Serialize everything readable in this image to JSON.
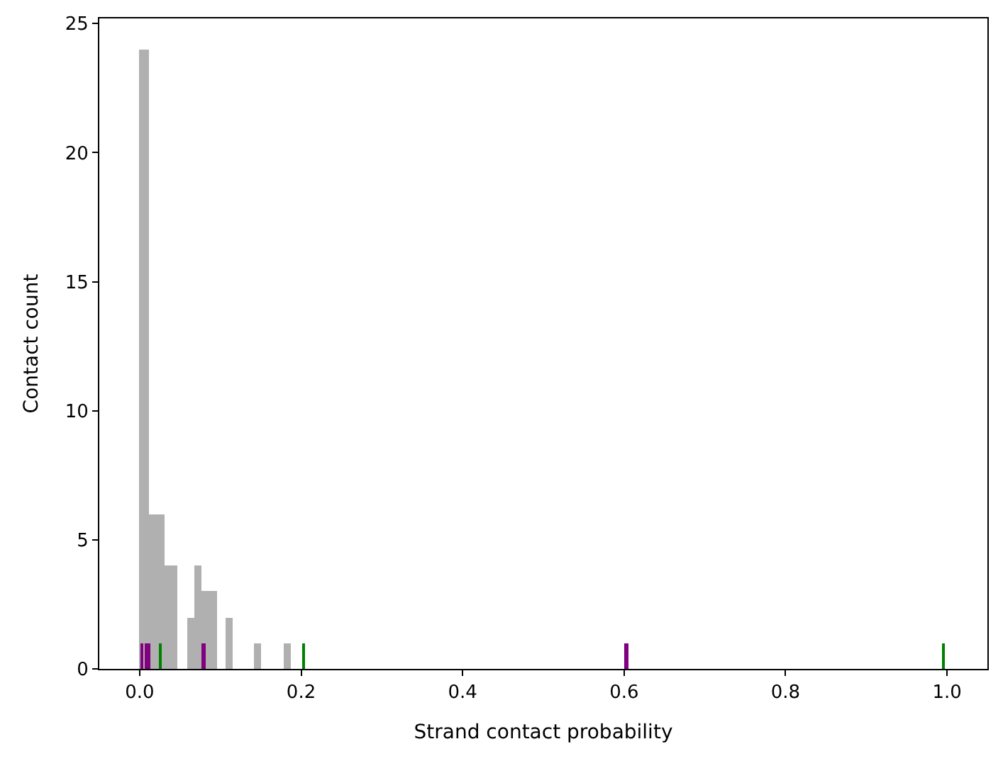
{
  "chart_data": {
    "type": "histogram",
    "xlabel": "Strand contact probability",
    "ylabel": "Contact count",
    "bins": [
      0,
      0.012,
      0.03,
      0.047,
      0.059,
      0.068,
      0.077,
      0.095,
      0.106,
      0.115,
      0.142,
      0.151,
      0.178,
      0.187
    ],
    "values": [
      24,
      6,
      4,
      0,
      2,
      4,
      3,
      0,
      2,
      0,
      1,
      0,
      1
    ],
    "color": "#b0b0b0",
    "series": [
      {
        "type": "bar",
        "color": "#800080",
        "x": [
          0.003,
          0.008,
          0.012,
          0.079,
          0.603
        ],
        "values": [
          1,
          1,
          1,
          1,
          1
        ]
      },
      {
        "type": "bar",
        "color": "#008000",
        "x": [
          0.026,
          0.203,
          0.996
        ],
        "values": [
          1,
          1,
          1
        ]
      }
    ],
    "xlim": [
      -0.05,
      1.05
    ],
    "xticks": [
      {
        "value": 0,
        "label": "0.0"
      },
      0.2,
      0.4,
      0.6,
      0.8,
      {
        "value": 1,
        "label": "1.0"
      }
    ],
    "ylim": [
      0,
      25.2
    ],
    "yticks": [
      0,
      5,
      10,
      15,
      20,
      25
    ]
  }
}
